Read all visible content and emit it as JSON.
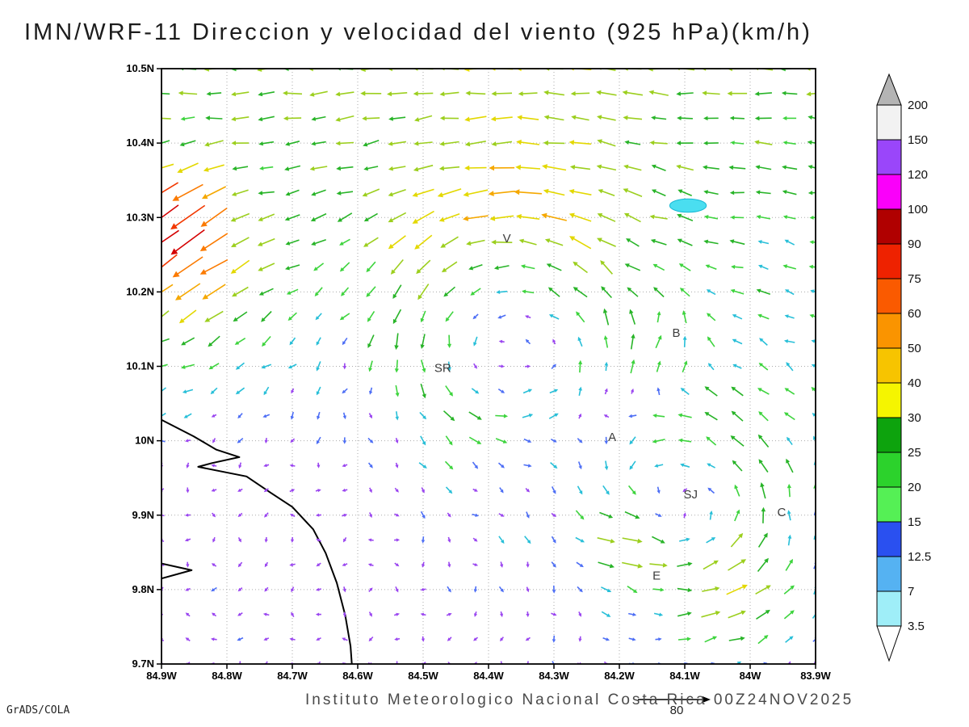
{
  "chart_data": {
    "type": "vector_field_map",
    "title": "IMN/WRF-11 Direccion y velocidad del viento (925 hPa)(km/h)",
    "units": "km/h",
    "lon_range": [
      -84.9,
      -83.9
    ],
    "lat_range": [
      9.7,
      10.5
    ],
    "x_tick_values": [
      -84.9,
      -84.8,
      -84.7,
      -84.6,
      -84.5,
      -84.4,
      -84.3,
      -84.2,
      -84.1,
      -84.0,
      -83.9
    ],
    "x_tick_labels": [
      "84.9W",
      "84.8W",
      "84.7W",
      "84.6W",
      "84.5W",
      "84.4W",
      "84.3W",
      "84.2W",
      "84.1W",
      "84W",
      "83.9W"
    ],
    "y_tick_values": [
      10.5,
      10.4,
      10.3,
      10.2,
      10.1,
      10.0,
      9.9,
      9.8,
      9.7
    ],
    "y_tick_labels": [
      "10.5N",
      "10.4N",
      "10.3N",
      "10.2N",
      "10.1N",
      "10N",
      "9.9N",
      "9.8N",
      "9.7N"
    ],
    "grid": {
      "nx": 26,
      "ny": 25
    },
    "colorbar": {
      "levels": [
        "3.5",
        "7",
        "12.5",
        "15",
        "20",
        "25",
        "30",
        "40",
        "50",
        "60",
        "75",
        "90",
        "100",
        "120",
        "150",
        "200"
      ],
      "band_colors": [
        "#9feef8",
        "#55b2f2",
        "#2a50f0",
        "#55f055",
        "#2cd22c",
        "#0da30d",
        "#f5f500",
        "#f7c400",
        "#fa9400",
        "#fa5a00",
        "#ee2200",
        "#b00000",
        "#fa00fa",
        "#9a46fa",
        "#f2f2f2"
      ],
      "under_color": "#ffffff",
      "over_color": "#b4b4b4"
    },
    "arrow_speed_colors": {
      "levels": [
        8,
        13,
        18,
        24,
        30,
        38,
        46,
        56,
        70,
        85,
        100
      ],
      "colors": [
        "#9a45f0",
        "#4d6ef5",
        "#28bfd8",
        "#3ed43e",
        "#28b428",
        "#9ccf1e",
        "#e3d800",
        "#f5a800",
        "#fb7a00",
        "#f23800",
        "#d40000",
        "#f518c8"
      ]
    },
    "city_labels": [
      {
        "text": "V",
        "lon": -84.372,
        "lat": 10.272
      },
      {
        "text": "B",
        "lon": -84.113,
        "lat": 10.145
      },
      {
        "text": "SR",
        "lon": -84.47,
        "lat": 10.098
      },
      {
        "text": "A",
        "lon": -84.211,
        "lat": 10.005
      },
      {
        "text": "SJ",
        "lon": -84.091,
        "lat": 9.928
      },
      {
        "text": "C",
        "lon": -83.952,
        "lat": 9.904
      },
      {
        "text": "E",
        "lon": -84.143,
        "lat": 9.819
      }
    ],
    "coastlines": [
      [
        [
          -84.9,
          10.028
        ],
        [
          -84.851,
          10.006
        ],
        [
          -84.816,
          9.988
        ],
        [
          -84.781,
          9.978
        ],
        [
          -84.823,
          9.97
        ],
        [
          -84.844,
          9.965
        ],
        [
          -84.77,
          9.952
        ],
        [
          -84.733,
          9.93
        ],
        [
          -84.7,
          9.911
        ],
        [
          -84.668,
          9.881
        ],
        [
          -84.649,
          9.849
        ],
        [
          -84.632,
          9.809
        ],
        [
          -84.619,
          9.765
        ],
        [
          -84.611,
          9.724
        ],
        [
          -84.609,
          9.7
        ]
      ],
      [
        [
          -84.9,
          9.835
        ],
        [
          -84.854,
          9.826
        ],
        [
          -84.9,
          9.815
        ]
      ]
    ],
    "water_patch": {
      "lon": -84.095,
      "lat": 10.316,
      "rlon": 0.028,
      "rlat": 0.009,
      "color": "#4adef0",
      "edge": "#17b8d4"
    },
    "flow_model": {
      "background": {
        "lat_zero": 10.0,
        "lat_full": 10.5,
        "u_base": -4,
        "u_extra": -26,
        "exp": 1.2
      },
      "vortices": [
        {
          "lon": -84.38,
          "lat": 10.18,
          "vmax": 28,
          "r0": 0.15,
          "decay": 0.12
        },
        {
          "lon": -84.09,
          "lat": 9.92,
          "vmax": 26,
          "r0": 0.11,
          "decay": 0.13
        }
      ],
      "jets": [
        {
          "lon": -84.89,
          "lat": 10.285,
          "sigma": 0.075,
          "u": -52,
          "v": -48
        },
        {
          "lon": -84.84,
          "lat": 10.2,
          "sigma": 0.13,
          "u": -20,
          "v": -16
        },
        {
          "lon": -84.13,
          "lat": 10.12,
          "sigma": 0.07,
          "u": 30,
          "v": 16
        },
        {
          "lon": -84.2,
          "lat": 9.87,
          "sigma": 0.06,
          "u": 30,
          "v": 9
        },
        {
          "lon": -84.01,
          "lat": 9.78,
          "sigma": 0.08,
          "u": 24,
          "v": 5
        }
      ],
      "noise_amp": 5
    },
    "reference_vector": {
      "label": "80",
      "speed": 80
    }
  },
  "footer": {
    "credit": "GrADS/COLA",
    "caption": "Instituto Meteorologico Nacional Costa Rica 00Z24NOV2025"
  }
}
